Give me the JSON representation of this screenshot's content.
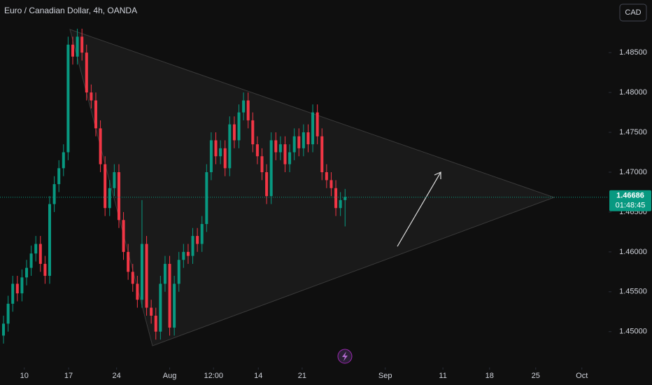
{
  "chart_data": {
    "type": "candlestick",
    "title": "Euro / Canadian Dollar, 4h, OANDA",
    "currency": "CAD",
    "last_price": 1.46686,
    "countdown": "01:48:45",
    "up_color": "#089981",
    "down_color": "#f23645",
    "grid": false,
    "ylim": [
      1.4455,
      1.4916
    ],
    "yticks": [
      {
        "value": 1.45,
        "label": "1.45000"
      },
      {
        "value": 1.455,
        "label": "1.45500"
      },
      {
        "value": 1.46,
        "label": "1.46000"
      },
      {
        "value": 1.465,
        "label": "1.46500"
      },
      {
        "value": 1.47,
        "label": "1.47000"
      },
      {
        "value": 1.475,
        "label": "1.47500"
      },
      {
        "value": 1.48,
        "label": "1.48000"
      },
      {
        "value": 1.485,
        "label": "1.48500"
      }
    ],
    "xlim": [
      -0.76,
      131.1
    ],
    "xticks": [
      {
        "value": 4.5,
        "label": "10"
      },
      {
        "value": 14.1,
        "label": "17"
      },
      {
        "value": 24.5,
        "label": "24"
      },
      {
        "value": 36,
        "label": "Aug"
      },
      {
        "value": 45.5,
        "label": "12:00"
      },
      {
        "value": 55.2,
        "label": "14"
      },
      {
        "value": 64.7,
        "label": "21"
      },
      {
        "value": 82.7,
        "label": "Sep"
      },
      {
        "value": 95.2,
        "label": "11"
      },
      {
        "value": 105.3,
        "label": "18"
      },
      {
        "value": 115.3,
        "label": "25"
      },
      {
        "value": 125.3,
        "label": "Oct"
      }
    ],
    "open": [
      1.4495,
      1.451,
      1.4535,
      1.456,
      1.4548,
      1.4568,
      1.458,
      1.4598,
      1.461,
      1.4585,
      1.457,
      1.466,
      1.4685,
      1.4705,
      1.4725,
      1.486,
      1.4845,
      1.487,
      1.485,
      1.48,
      1.479,
      1.4755,
      1.471,
      1.4655,
      1.468,
      1.47,
      1.464,
      1.46,
      1.4575,
      1.456,
      1.454,
      1.461,
      1.453,
      1.452,
      1.45,
      1.456,
      1.4585,
      1.4505,
      1.456,
      1.459,
      1.46,
      1.4595,
      1.462,
      1.461,
      1.4635,
      1.47,
      1.474,
      1.472,
      1.473,
      1.4705,
      1.476,
      1.474,
      1.4775,
      1.479,
      1.4765,
      1.4735,
      1.472,
      1.47,
      1.467,
      1.474,
      1.4725,
      1.4735,
      1.471,
      1.4725,
      1.4745,
      1.473,
      1.475,
      1.4735,
      1.4775,
      1.4745,
      1.47,
      1.469,
      1.468,
      1.4655,
      1.4665
    ],
    "high": [
      1.452,
      1.4545,
      1.457,
      1.457,
      1.4578,
      1.459,
      1.4608,
      1.462,
      1.462,
      1.4595,
      1.467,
      1.4695,
      1.4715,
      1.4735,
      1.487,
      1.487,
      1.488,
      1.488,
      1.486,
      1.481,
      1.48,
      1.4765,
      1.472,
      1.469,
      1.471,
      1.471,
      1.465,
      1.461,
      1.4585,
      1.457,
      1.4665,
      1.462,
      1.454,
      1.453,
      1.457,
      1.4595,
      1.4595,
      1.457,
      1.46,
      1.461,
      1.461,
      1.463,
      1.463,
      1.4645,
      1.471,
      1.475,
      1.475,
      1.474,
      1.474,
      1.477,
      1.477,
      1.4785,
      1.48,
      1.48,
      1.4775,
      1.4745,
      1.473,
      1.471,
      1.475,
      1.475,
      1.4745,
      1.4745,
      1.4735,
      1.4755,
      1.4755,
      1.476,
      1.476,
      1.4785,
      1.4785,
      1.4755,
      1.471,
      1.47,
      1.469,
      1.4675,
      1.4679
    ],
    "low": [
      1.4485,
      1.45,
      1.4525,
      1.4538,
      1.4538,
      1.4558,
      1.457,
      1.4588,
      1.4575,
      1.456,
      1.456,
      1.465,
      1.4675,
      1.4695,
      1.4715,
      1.4835,
      1.4835,
      1.484,
      1.479,
      1.478,
      1.4745,
      1.47,
      1.4645,
      1.4645,
      1.467,
      1.463,
      1.459,
      1.4565,
      1.455,
      1.453,
      1.453,
      1.452,
      1.451,
      1.449,
      1.449,
      1.455,
      1.4495,
      1.4495,
      1.455,
      1.458,
      1.4585,
      1.4585,
      1.46,
      1.46,
      1.4625,
      1.469,
      1.471,
      1.471,
      1.4695,
      1.4695,
      1.473,
      1.473,
      1.4765,
      1.4755,
      1.4725,
      1.471,
      1.469,
      1.466,
      1.466,
      1.4715,
      1.4715,
      1.47,
      1.47,
      1.4715,
      1.472,
      1.472,
      1.4725,
      1.4725,
      1.4735,
      1.469,
      1.468,
      1.467,
      1.4645,
      1.4645,
      1.4632
    ],
    "close": [
      1.451,
      1.4535,
      1.456,
      1.4548,
      1.4568,
      1.458,
      1.4598,
      1.461,
      1.4585,
      1.457,
      1.466,
      1.4685,
      1.4705,
      1.4725,
      1.486,
      1.4845,
      1.487,
      1.485,
      1.48,
      1.479,
      1.4755,
      1.471,
      1.4655,
      1.468,
      1.47,
      1.464,
      1.46,
      1.4575,
      1.456,
      1.454,
      1.461,
      1.453,
      1.452,
      1.45,
      1.456,
      1.4585,
      1.4505,
      1.456,
      1.459,
      1.46,
      1.4595,
      1.462,
      1.461,
      1.4635,
      1.47,
      1.474,
      1.472,
      1.473,
      1.4705,
      1.476,
      1.474,
      1.4775,
      1.479,
      1.4765,
      1.4735,
      1.472,
      1.47,
      1.467,
      1.474,
      1.4725,
      1.4735,
      1.471,
      1.4725,
      1.4745,
      1.473,
      1.475,
      1.4735,
      1.4775,
      1.4745,
      1.47,
      1.469,
      1.468,
      1.4655,
      1.4665,
      1.4669
    ]
  }
}
